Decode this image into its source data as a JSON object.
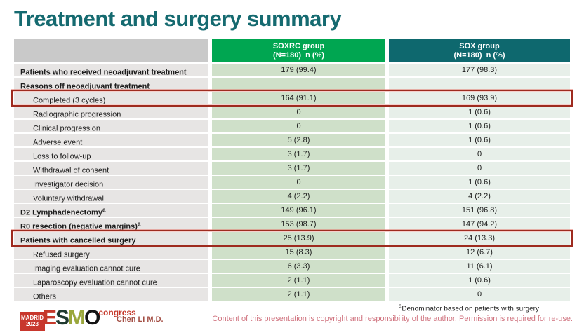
{
  "slide": {
    "title": "Treatment and surgery summary",
    "footnote_sup": "a",
    "footnote": "Denominator based on patients with surgery",
    "copyright": "Content of this presentation is copyright and responsibility of the author. Permission is required for re-use.",
    "author": "Chen LI M.D."
  },
  "logo": {
    "badge_line1": "MADRID",
    "badge_line2": "2023",
    "letters": [
      "E",
      "S",
      "M",
      "O"
    ],
    "congress": "congress"
  },
  "table": {
    "columns": [
      {
        "line1": "SOXRC group",
        "line2": "(N=180)  n (%)"
      },
      {
        "line1": "SOX group",
        "line2": "(N=180)  n (%)"
      }
    ],
    "rows": [
      {
        "label": "Patients who received neoadjuvant treatment",
        "sup": "",
        "bold": true,
        "indent": false,
        "highlight": false,
        "soxrc": "179 (99.4)",
        "sox": "177 (98.3)"
      },
      {
        "label": "Reasons off neoadjuvant treatment",
        "sup": "",
        "bold": true,
        "indent": false,
        "highlight": false,
        "soxrc": "",
        "sox": ""
      },
      {
        "label": "Completed (3 cycles)",
        "sup": "",
        "bold": false,
        "indent": true,
        "highlight": true,
        "soxrc": "164 (91.1)",
        "sox": "169 (93.9)"
      },
      {
        "label": "Radiographic progression",
        "sup": "",
        "bold": false,
        "indent": true,
        "highlight": false,
        "soxrc": "0",
        "sox": "1 (0.6)"
      },
      {
        "label": "Clinical progression",
        "sup": "",
        "bold": false,
        "indent": true,
        "highlight": false,
        "soxrc": "0",
        "sox": "1 (0.6)"
      },
      {
        "label": "Adverse event",
        "sup": "",
        "bold": false,
        "indent": true,
        "highlight": false,
        "soxrc": "5 (2.8)",
        "sox": "1 (0.6)"
      },
      {
        "label": "Loss to follow-up",
        "sup": "",
        "bold": false,
        "indent": true,
        "highlight": false,
        "soxrc": "3 (1.7)",
        "sox": "0"
      },
      {
        "label": "Withdrawal of consent",
        "sup": "",
        "bold": false,
        "indent": true,
        "highlight": false,
        "soxrc": "3 (1.7)",
        "sox": "0"
      },
      {
        "label": "Investigator decision",
        "sup": "",
        "bold": false,
        "indent": true,
        "highlight": false,
        "soxrc": "0",
        "sox": "1 (0.6)"
      },
      {
        "label": "Voluntary withdrawal",
        "sup": "",
        "bold": false,
        "indent": true,
        "highlight": false,
        "soxrc": "4 (2.2)",
        "sox": "4 (2.2)"
      },
      {
        "label": "D2 Lymphadenectomy",
        "sup": "a",
        "bold": true,
        "indent": false,
        "highlight": false,
        "soxrc": "149 (96.1)",
        "sox": "151 (96.8)"
      },
      {
        "label": "R0 resection (negative margins)",
        "sup": "a",
        "bold": true,
        "indent": false,
        "highlight": false,
        "soxrc": "153 (98.7)",
        "sox": "147 (94.2)"
      },
      {
        "label": "Patients with cancelled surgery",
        "sup": "",
        "bold": true,
        "indent": false,
        "highlight": true,
        "soxrc": "25 (13.9)",
        "sox": "24 (13.3)"
      },
      {
        "label": "Refused surgery",
        "sup": "",
        "bold": false,
        "indent": true,
        "highlight": false,
        "soxrc": "15 (8.3)",
        "sox": "12 (6.7)"
      },
      {
        "label": "Imaging evaluation cannot cure",
        "sup": "",
        "bold": false,
        "indent": true,
        "highlight": false,
        "soxrc": "6 (3.3)",
        "sox": "11 (6.1)"
      },
      {
        "label": "Laparoscopy evaluation cannot cure",
        "sup": "",
        "bold": false,
        "indent": true,
        "highlight": false,
        "soxrc": "2 (1.1)",
        "sox": "1 (0.6)"
      },
      {
        "label": "Others",
        "sup": "",
        "bold": false,
        "indent": true,
        "highlight": false,
        "soxrc": "2 (1.1)",
        "sox": "0"
      }
    ]
  },
  "colors": {
    "title_teal": "#156a70",
    "soxrc_header_green": "#00a651",
    "sox_header_teal": "#0e686e",
    "header_label_gray": "#c9c9c9",
    "label_cell_gray": "#e7e5e4",
    "soxrc_cell_green": "#cfe0c9",
    "sox_cell_light": "#e7efe9",
    "highlight_red": "#9e2b1f",
    "copyright_pink": "#d0737f",
    "author_red": "#a34e44"
  }
}
